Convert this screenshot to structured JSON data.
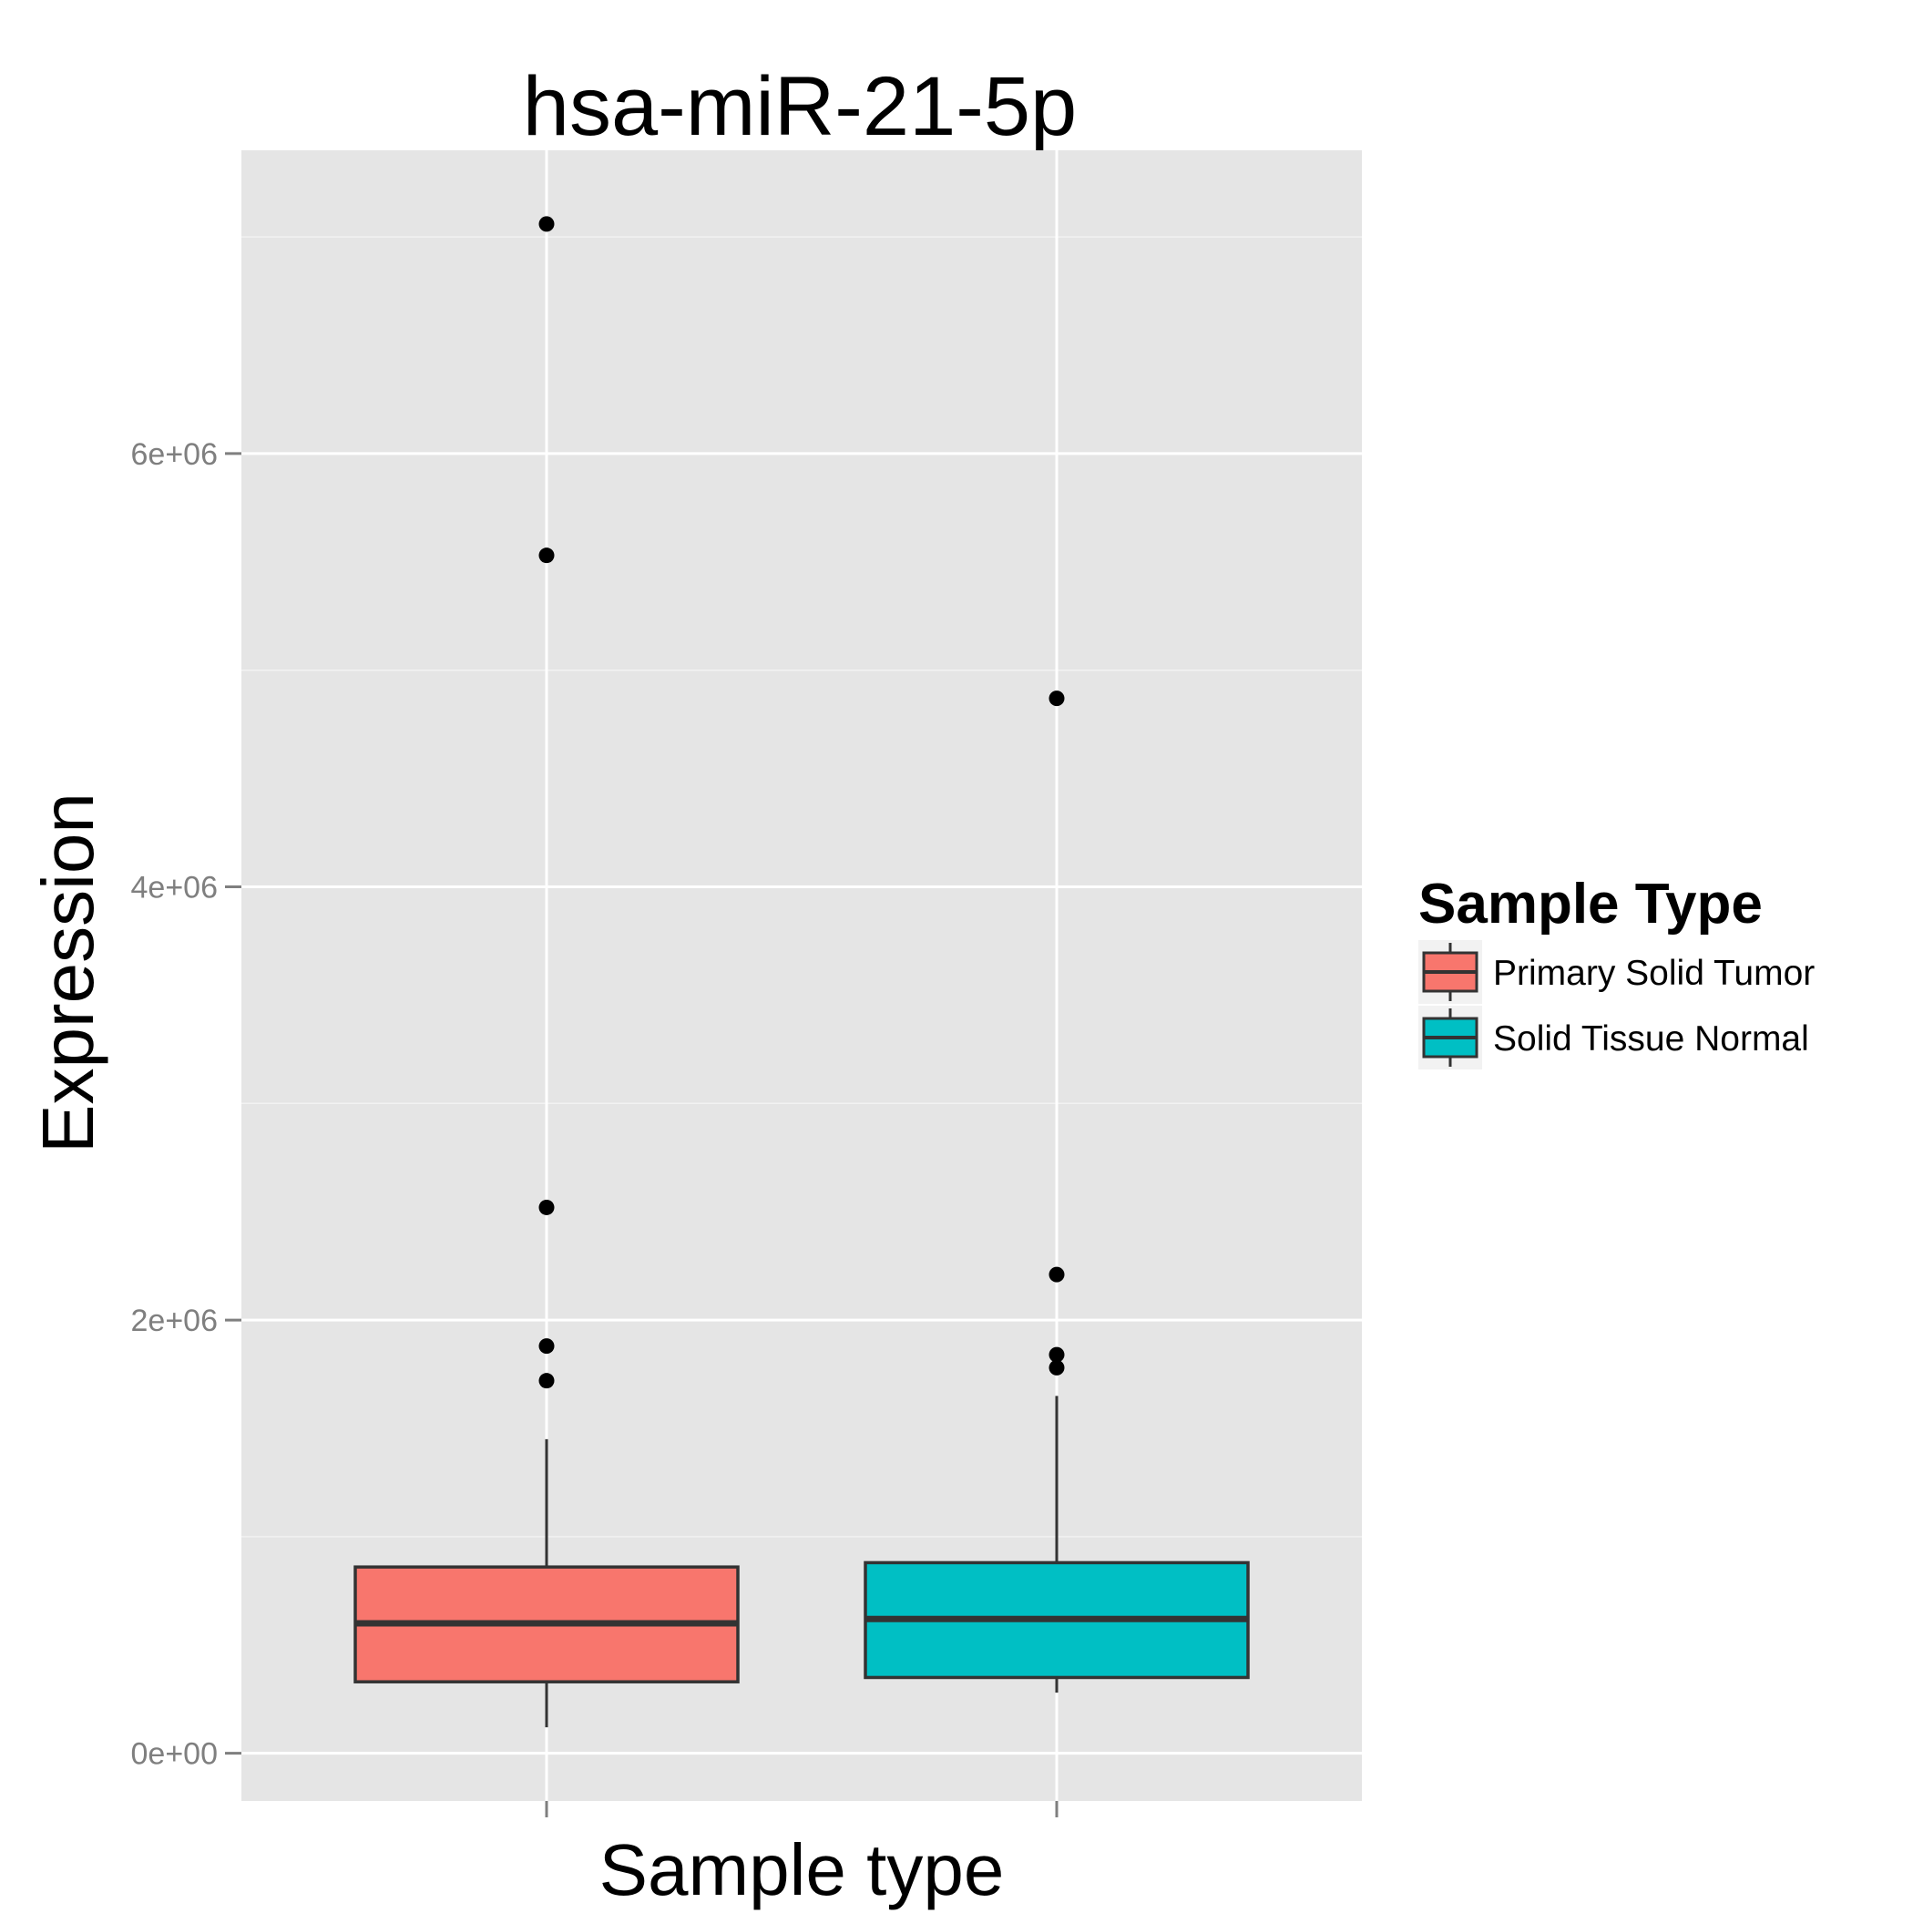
{
  "chart_data": {
    "type": "boxplot",
    "title": "hsa-miR-21-5p",
    "xlabel": "Sample type",
    "ylabel": "Expression",
    "ylim": [
      -220000,
      7400000
    ],
    "y_ticks": [
      {
        "value": 0,
        "label": "0e+00"
      },
      {
        "value": 2000000,
        "label": "2e+06"
      },
      {
        "value": 4000000,
        "label": "4e+06"
      },
      {
        "value": 6000000,
        "label": "6e+06"
      }
    ],
    "y_minor_ticks": [
      1000000,
      3000000,
      5000000,
      7000000
    ],
    "grid": true,
    "legend": {
      "title": "Sample Type",
      "position": "right",
      "entries": [
        {
          "label": "Primary Solid Tumor",
          "color": "#F8766D"
        },
        {
          "label": "Solid Tissue Normal",
          "color": "#00BFC4"
        }
      ]
    },
    "series": [
      {
        "name": "Primary Solid Tumor",
        "color": "#F8766D",
        "whisker_low": 120000,
        "q1": 330000,
        "median": 600000,
        "q3": 860000,
        "whisker_high": 1450000,
        "outliers": [
          1720000,
          1880000,
          2520000,
          5530000,
          7060000
        ]
      },
      {
        "name": "Solid Tissue Normal",
        "color": "#00BFC4",
        "whisker_low": 280000,
        "q1": 350000,
        "median": 620000,
        "q3": 880000,
        "whisker_high": 1650000,
        "outliers": [
          1780000,
          1840000,
          2210000,
          4870000
        ]
      }
    ]
  },
  "colors": {
    "panel_background": "#E5E5E5",
    "grid_major": "#FFFFFF",
    "grid_minor": "#F2F2F2",
    "box_outline": "#333333"
  }
}
